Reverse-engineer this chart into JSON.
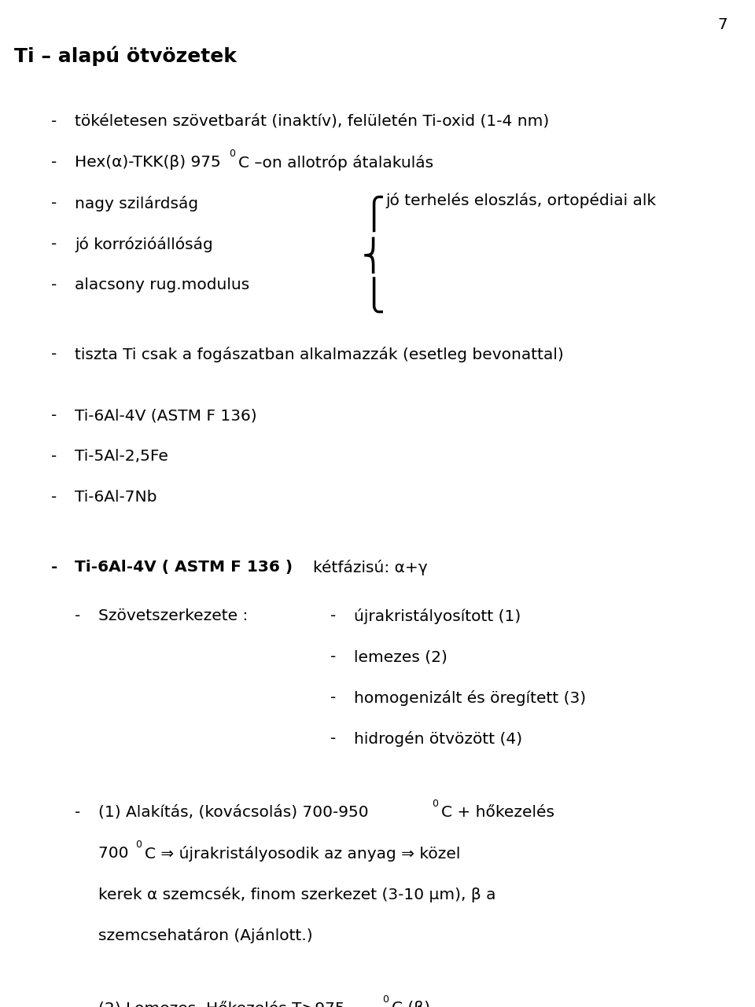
{
  "page_number": "7",
  "title": "Ti – alapú ötvözetek",
  "bg_color": "#ffffff",
  "text_color": "#000000",
  "figsize": [
    9.6,
    12.81
  ],
  "dpi": 100
}
